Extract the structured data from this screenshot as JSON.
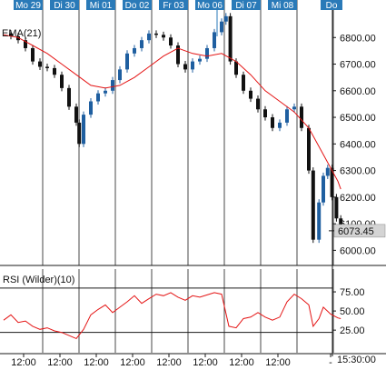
{
  "chart_data": [
    {
      "type": "candlestick",
      "title": "",
      "indicator_label": "EMA(21)",
      "date_labels": [
        "Mo 29",
        "Di 30",
        "Mi 01",
        "Do 02",
        "Fr 03",
        "Mo 06",
        "Di 07",
        "Mi 08",
        "Do"
      ],
      "highlighted_date": "Mo 06",
      "ylim": [
        5950,
        6900
      ],
      "y_ticks": [
        6000,
        6100,
        6200,
        6300,
        6400,
        6500,
        6600,
        6700,
        6800
      ],
      "y_tick_labels": [
        "6000.00",
        "6100.00",
        "6200.00",
        "6300.00",
        "6400.00",
        "6500.00",
        "6600.00",
        "6700.00",
        "6800.00"
      ],
      "last_price": 6073.45,
      "last_price_label": "6073.45",
      "close_path": [
        [
          0,
          6815
        ],
        [
          0.5,
          6805
        ],
        [
          1.0,
          6790
        ],
        [
          1.5,
          6760
        ],
        [
          2.0,
          6710
        ],
        [
          2.5,
          6690
        ],
        [
          3.0,
          6685
        ],
        [
          3.5,
          6660
        ],
        [
          4.0,
          6610
        ],
        [
          4.5,
          6540
        ],
        [
          5.0,
          6480
        ],
        [
          5.2,
          6400
        ],
        [
          5.5,
          6510
        ],
        [
          6.0,
          6560
        ],
        [
          6.5,
          6590
        ],
        [
          7.0,
          6600
        ],
        [
          7.5,
          6640
        ],
        [
          8.0,
          6680
        ],
        [
          8.5,
          6740
        ],
        [
          9.0,
          6760
        ],
        [
          9.5,
          6790
        ],
        [
          10.0,
          6815
        ],
        [
          10.5,
          6810
        ],
        [
          11.0,
          6800
        ],
        [
          11.5,
          6770
        ],
        [
          12.0,
          6700
        ],
        [
          12.5,
          6680
        ],
        [
          13.0,
          6710
        ],
        [
          13.5,
          6720
        ],
        [
          14.0,
          6760
        ],
        [
          14.5,
          6820
        ],
        [
          15.0,
          6860
        ],
        [
          15.3,
          6880
        ],
        [
          15.6,
          6710
        ],
        [
          16.0,
          6660
        ],
        [
          16.5,
          6600
        ],
        [
          17.0,
          6570
        ],
        [
          17.5,
          6530
        ],
        [
          18.0,
          6500
        ],
        [
          18.5,
          6460
        ],
        [
          19.0,
          6480
        ],
        [
          19.5,
          6530
        ],
        [
          20.0,
          6540
        ],
        [
          20.5,
          6460
        ],
        [
          21.0,
          6300
        ],
        [
          21.3,
          6040
        ],
        [
          21.7,
          6180
        ],
        [
          22.0,
          6280
        ],
        [
          22.3,
          6310
        ],
        [
          22.6,
          6200
        ],
        [
          22.9,
          6120
        ],
        [
          23.2,
          6073.45
        ]
      ],
      "ema_21": [
        [
          0,
          6810
        ],
        [
          1.0,
          6800
        ],
        [
          2.0,
          6770
        ],
        [
          3.0,
          6740
        ],
        [
          4.0,
          6700
        ],
        [
          5.0,
          6660
        ],
        [
          6.0,
          6620
        ],
        [
          7.0,
          6610
        ],
        [
          8.0,
          6620
        ],
        [
          9.0,
          6650
        ],
        [
          10.0,
          6690
        ],
        [
          11.0,
          6730
        ],
        [
          12.0,
          6760
        ],
        [
          13.0,
          6740
        ],
        [
          14.0,
          6730
        ],
        [
          15.0,
          6740
        ],
        [
          16.0,
          6710
        ],
        [
          17.0,
          6660
        ],
        [
          18.0,
          6600
        ],
        [
          19.0,
          6560
        ],
        [
          20.0,
          6520
        ],
        [
          21.0,
          6460
        ],
        [
          22.0,
          6360
        ],
        [
          23.0,
          6260
        ],
        [
          23.2,
          6230
        ]
      ]
    },
    {
      "type": "line",
      "indicator_label": "RSI (Wilder)(10)",
      "ylim": [
        5,
        100
      ],
      "y_ticks": [
        25,
        50,
        75
      ],
      "y_tick_labels": [
        "25.00",
        "50.00",
        "75.00"
      ],
      "reference_lines": [
        22,
        80
      ],
      "values": [
        [
          0,
          38
        ],
        [
          0.5,
          45
        ],
        [
          1.0,
          35
        ],
        [
          1.5,
          37
        ],
        [
          2.0,
          30
        ],
        [
          2.5,
          26
        ],
        [
          3.0,
          28
        ],
        [
          3.5,
          24
        ],
        [
          4.0,
          22
        ],
        [
          4.5,
          18
        ],
        [
          5.0,
          14
        ],
        [
          5.5,
          26
        ],
        [
          6.0,
          45
        ],
        [
          6.5,
          52
        ],
        [
          7.0,
          58
        ],
        [
          7.5,
          48
        ],
        [
          8.0,
          55
        ],
        [
          8.5,
          62
        ],
        [
          9.0,
          70
        ],
        [
          9.5,
          60
        ],
        [
          10.0,
          66
        ],
        [
          10.5,
          72
        ],
        [
          11.0,
          70
        ],
        [
          11.5,
          74
        ],
        [
          12.0,
          68
        ],
        [
          12.5,
          64
        ],
        [
          13.0,
          70
        ],
        [
          13.5,
          68
        ],
        [
          14.0,
          71
        ],
        [
          14.5,
          74
        ],
        [
          15.0,
          72
        ],
        [
          15.5,
          30
        ],
        [
          16.0,
          28
        ],
        [
          16.5,
          40
        ],
        [
          17.0,
          42
        ],
        [
          17.5,
          48
        ],
        [
          18.0,
          42
        ],
        [
          18.5,
          38
        ],
        [
          19.0,
          42
        ],
        [
          19.5,
          62
        ],
        [
          20.0,
          72
        ],
        [
          20.5,
          66
        ],
        [
          21.0,
          58
        ],
        [
          21.3,
          30
        ],
        [
          21.7,
          40
        ],
        [
          22.0,
          55
        ],
        [
          22.5,
          46
        ],
        [
          23.0,
          41
        ],
        [
          23.2,
          40
        ]
      ]
    }
  ],
  "x_axis": {
    "labels": [
      "12:00",
      "12:00",
      "12:00",
      "12:00",
      "12:00",
      "12:00",
      "12:00",
      "12:00",
      "-"
    ],
    "current_time_label": "15:30:00"
  },
  "colors": {
    "up_candle": "#1f5fa0",
    "down_candle": "#111111",
    "ema": "#e41414",
    "rsi": "#e41414",
    "grid": "#1a1a1a",
    "date_label_bg": "#2a7ab8",
    "date_label_text": "#ffffff",
    "axis_text": "#111111",
    "price_box_bg": "#d4d4d4"
  }
}
